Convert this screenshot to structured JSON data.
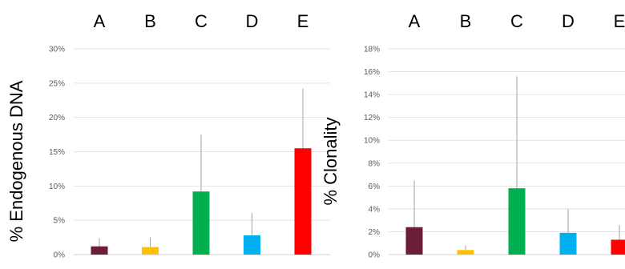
{
  "chart_data": [
    {
      "type": "bar",
      "categories": [
        "A",
        "B",
        "C",
        "D",
        "E"
      ],
      "values": [
        1.2,
        1.1,
        9.2,
        2.8,
        15.5
      ],
      "error_upper": [
        2.4,
        2.5,
        17.5,
        6.1,
        24.2
      ],
      "colors": [
        "#6b1e36",
        "#ffc000",
        "#00b050",
        "#00b0f0",
        "#ff0000"
      ],
      "ylabel": "% Endogenous DNA",
      "ylim": [
        0,
        30
      ],
      "yticks": [
        0,
        5,
        10,
        15,
        20,
        25,
        30
      ],
      "ytick_labels": [
        "0%",
        "5%",
        "10%",
        "15%",
        "20%",
        "25%",
        "30%"
      ],
      "grid": true
    },
    {
      "type": "bar",
      "categories": [
        "A",
        "B",
        "C",
        "D",
        "E"
      ],
      "values": [
        2.4,
        0.4,
        5.8,
        1.9,
        1.3
      ],
      "error_upper": [
        6.5,
        0.8,
        15.6,
        4.0,
        2.6
      ],
      "colors": [
        "#6b1e36",
        "#ffc000",
        "#00b050",
        "#00b0f0",
        "#ff0000"
      ],
      "ylabel": "% Clonality",
      "ylim": [
        0,
        18
      ],
      "yticks": [
        0,
        2,
        4,
        6,
        8,
        10,
        12,
        14,
        16,
        18
      ],
      "ytick_labels": [
        "0%",
        "2%",
        "4%",
        "6%",
        "8%",
        "10%",
        "12%",
        "14%",
        "16%",
        "18%"
      ],
      "grid": true
    }
  ]
}
